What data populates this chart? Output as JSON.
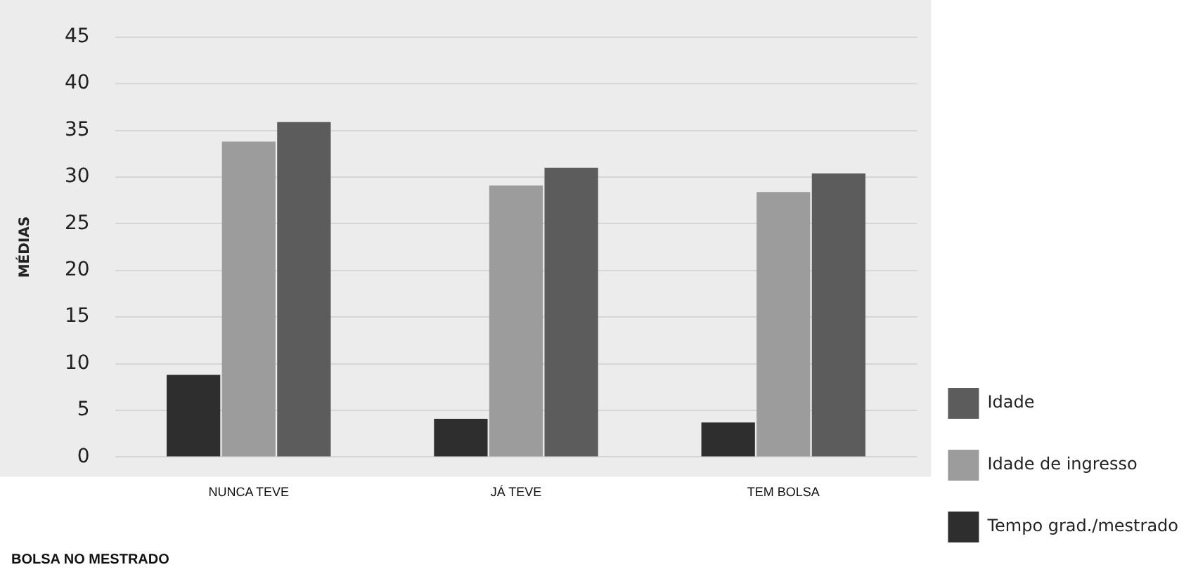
{
  "chart_data": {
    "type": "bar",
    "xlabel": "BOLSA NO MESTRADO",
    "ylabel": "MÉDIAS",
    "categories": [
      "NUNCA TEVE",
      "JÁ TEVE",
      "TEM BOLSA"
    ],
    "series": [
      {
        "name": "Tempo grad./mestrado",
        "color": "#2e2e2e",
        "values": [
          8.8,
          4.1,
          3.7
        ]
      },
      {
        "name": "Idade de ingresso",
        "color": "#9c9c9c",
        "values": [
          33.8,
          29.1,
          28.4
        ]
      },
      {
        "name": "Idade",
        "color": "#5c5c5c",
        "values": [
          35.9,
          31.0,
          30.4
        ]
      }
    ],
    "ylim": [
      0,
      45
    ],
    "yticks": [
      0,
      5,
      10,
      15,
      20,
      25,
      30,
      35,
      40,
      45
    ],
    "grid": "y",
    "legend": "right"
  }
}
